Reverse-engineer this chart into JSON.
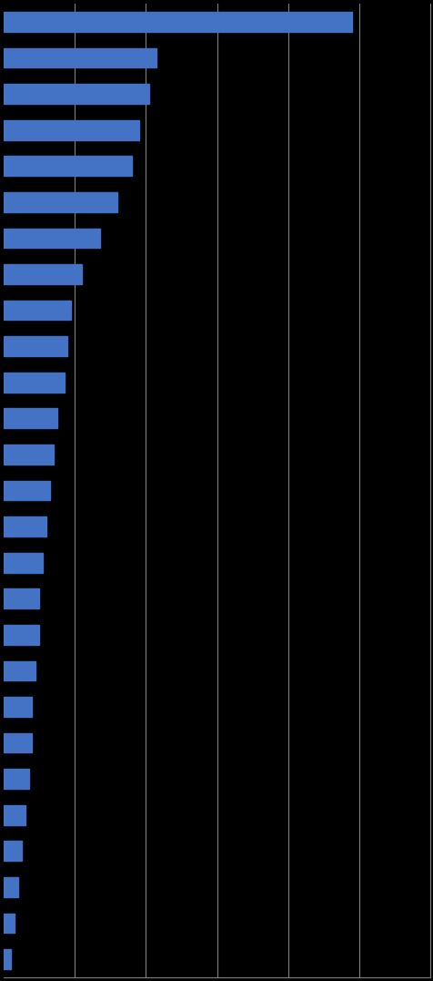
{
  "values": [
    98,
    43,
    41,
    38,
    36,
    32,
    27,
    22,
    19,
    18,
    17,
    15,
    14,
    13,
    12,
    11,
    10,
    10,
    9,
    8,
    8,
    7,
    6,
    5,
    4,
    3,
    2
  ],
  "bar_color": "#4472C4",
  "background_color": "#000000",
  "grid_color": "#808080",
  "xlim": [
    0,
    120
  ],
  "bar_height": 0.55,
  "figsize": [
    4.77,
    10.77
  ],
  "dpi": 100,
  "grid_positions": [
    20,
    40,
    60,
    80,
    100,
    120
  ]
}
